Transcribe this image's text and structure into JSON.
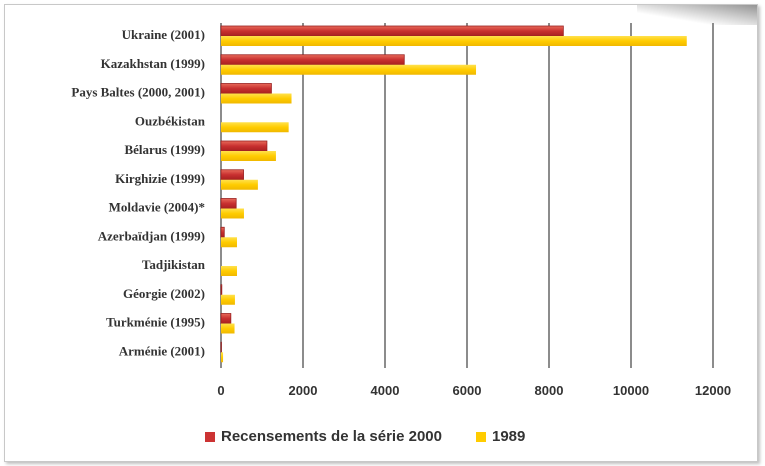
{
  "chart_data": {
    "type": "bar",
    "orientation": "horizontal",
    "title": "",
    "xlabel": "",
    "ylabel": "",
    "categories": [
      "Ukraine (2001)",
      "Kazakhstan (1999)",
      "Pays Baltes (2000,  2001)",
      "Ouzbékistan",
      "Bélarus (1999)",
      "Kirghizie (1999)",
      "Moldavie (2004)*",
      "Azerbaïdjan (1999)",
      "Tadjikistan",
      "Géorgie (2002)",
      "Turkménie (1995)",
      "Arménie (2001)"
    ],
    "series": [
      {
        "name": "Recensements de la série 2000",
        "color": "#cc3333",
        "values": [
          8350,
          4470,
          1230,
          0,
          1120,
          550,
          370,
          80,
          0,
          20,
          240,
          10
        ]
      },
      {
        "name": "1989",
        "color": "#ffcc00",
        "values": [
          11360,
          6220,
          1720,
          1650,
          1340,
          900,
          560,
          390,
          390,
          340,
          330,
          50
        ]
      }
    ],
    "xlim": [
      0,
      12000
    ],
    "xticks": [
      "0",
      "2000",
      "4000",
      "6000",
      "8000",
      "10000",
      "12000"
    ],
    "grid": "vertical",
    "legend_position": "bottom"
  }
}
